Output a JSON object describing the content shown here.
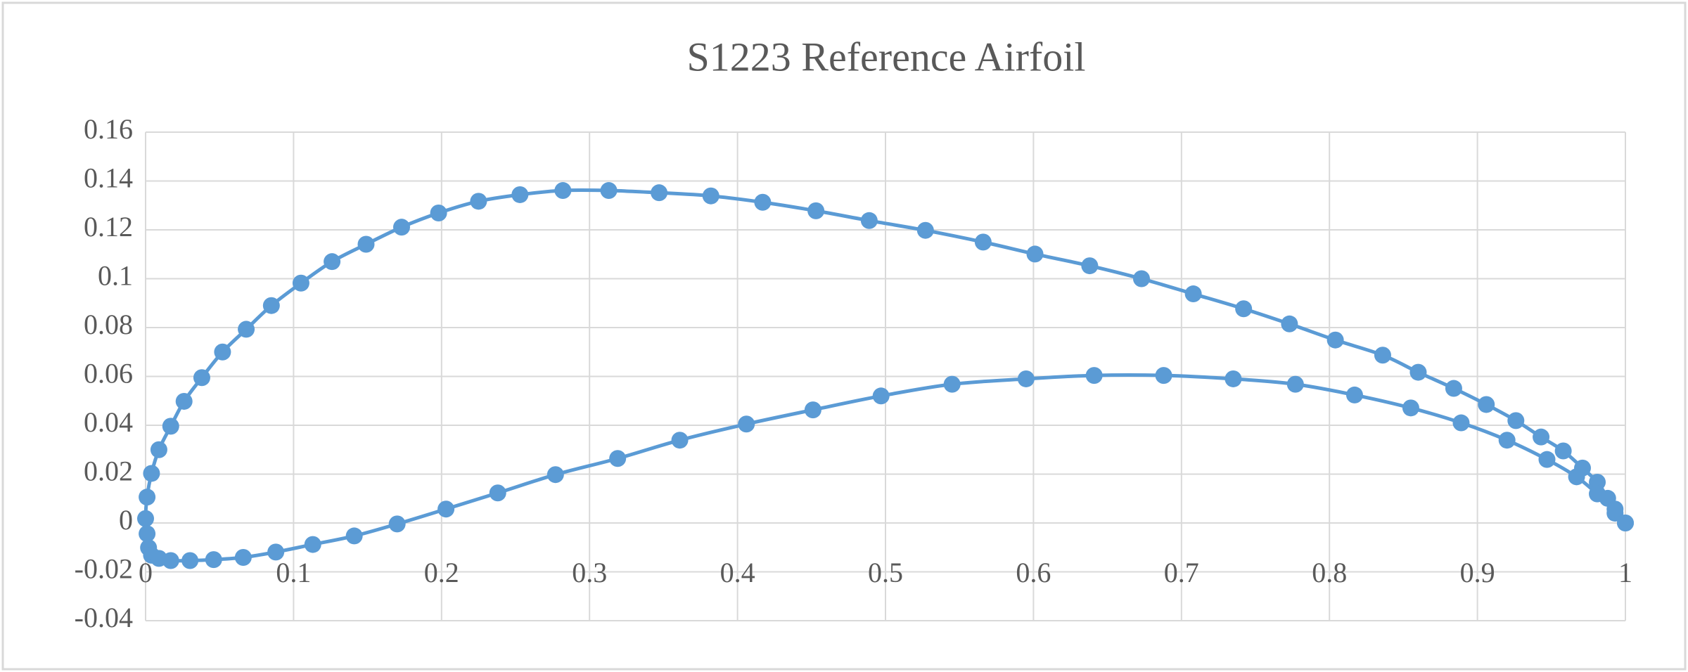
{
  "chart_data": {
    "type": "scatter",
    "title": "S1223 Reference Airfoil",
    "x": [
      1,
      0.993,
      0.988,
      0.981,
      0.971,
      0.958,
      0.943,
      0.926,
      0.906,
      0.884,
      0.86,
      0.836,
      0.804,
      0.773,
      0.742,
      0.708,
      0.673,
      0.638,
      0.601,
      0.566,
      0.527,
      0.489,
      0.453,
      0.417,
      0.382,
      0.347,
      0.313,
      0.282,
      0.253,
      0.225,
      0.198,
      0.173,
      0.149,
      0.126,
      0.105,
      0.085,
      0.068,
      0.052,
      0.038,
      0.026,
      0.017,
      0.009,
      0.004,
      0.001,
      0,
      0.001,
      0.002,
      0.004,
      0.009,
      0.017,
      0.03,
      0.046,
      0.066,
      0.088,
      0.113,
      0.141,
      0.17,
      0.203,
      0.238,
      0.277,
      0.319,
      0.361,
      0.406,
      0.451,
      0.497,
      0.545,
      0.595,
      0.641,
      0.688,
      0.735,
      0.777,
      0.817,
      0.855,
      0.889,
      0.92,
      0.947,
      0.967,
      0.981,
      0.993,
      1
    ],
    "values": [
      0,
      0.004,
      0.0101,
      0.0167,
      0.0225,
      0.0295,
      0.0352,
      0.0419,
      0.0485,
      0.0551,
      0.0617,
      0.0687,
      0.0749,
      0.0815,
      0.0877,
      0.0938,
      0.1,
      0.1053,
      0.1101,
      0.115,
      0.1198,
      0.1238,
      0.1278,
      0.1313,
      0.1339,
      0.1352,
      0.1361,
      0.1361,
      0.1344,
      0.1317,
      0.1269,
      0.1211,
      0.1141,
      0.107,
      0.0982,
      0.089,
      0.0793,
      0.07,
      0.0595,
      0.0498,
      0.0396,
      0.03,
      0.0203,
      0.0106,
      0.0018,
      -0.0044,
      -0.0101,
      -0.0132,
      -0.0145,
      -0.0154,
      -0.0154,
      -0.015,
      -0.0141,
      -0.0119,
      -0.0088,
      -0.0053,
      -0.0004,
      0.0057,
      0.0123,
      0.0198,
      0.0264,
      0.0339,
      0.0405,
      0.0463,
      0.052,
      0.0568,
      0.059,
      0.0604,
      0.0604,
      0.059,
      0.0568,
      0.0524,
      0.0471,
      0.041,
      0.0339,
      0.026,
      0.0189,
      0.0119,
      0.0057,
      0
    ],
    "color": "#5b9bd5",
    "xlim": [
      0,
      1
    ],
    "ylim": [
      -0.04,
      0.16
    ],
    "xticks": [
      0,
      0.1,
      0.2,
      0.3,
      0.4,
      0.5,
      0.6,
      0.7,
      0.8,
      0.9,
      1
    ],
    "yticks": [
      -0.04,
      -0.02,
      0,
      0.02,
      0.04,
      0.06,
      0.08,
      0.1,
      0.12,
      0.14,
      0.16
    ],
    "grid": true
  }
}
